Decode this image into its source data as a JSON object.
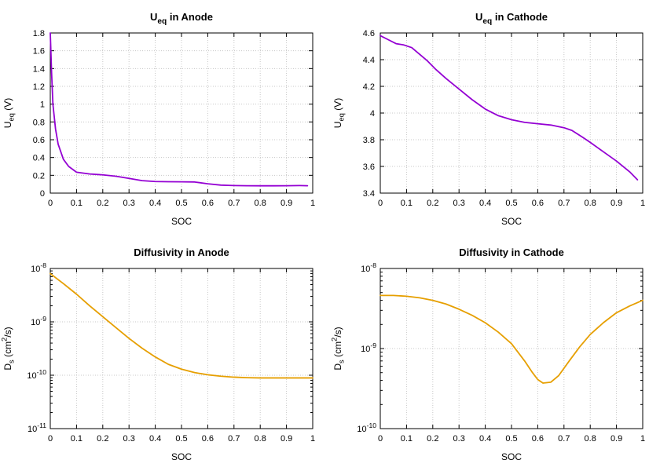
{
  "figure": {
    "background": "#ffffff",
    "grid_color": "#c8c8c8",
    "axis_color": "#000000",
    "text_color": "#000000"
  },
  "chart_data": [
    {
      "type": "line",
      "id": "ueq-anode",
      "title_plain": "U_eq in Anode",
      "title_segments": [
        {
          "t": "U"
        },
        {
          "t": "eq",
          "sub": true
        },
        {
          "t": " in Anode"
        }
      ],
      "xlabel": "SOC",
      "ylabel_plain": "U_eq (V)",
      "ylabel_segments": [
        {
          "t": "U"
        },
        {
          "t": "eq",
          "sub": true
        },
        {
          "t": " (V)"
        }
      ],
      "line_color": "#9400d3",
      "grid": true,
      "legend": "none",
      "y_scale": "linear",
      "x_range": [
        0,
        1
      ],
      "y_range": [
        0,
        1.8
      ],
      "x_ticks": {
        "values": [
          0,
          0.1,
          0.2,
          0.3,
          0.4,
          0.5,
          0.6,
          0.7,
          0.8,
          0.9,
          1
        ],
        "labels": [
          "0",
          "0.1",
          "0.2",
          "0.3",
          "0.4",
          "0.5",
          "0.6",
          "0.7",
          "0.8",
          "0.9",
          "1"
        ]
      },
      "y_ticks": {
        "values": [
          0,
          0.2,
          0.4,
          0.6,
          0.8,
          1,
          1.2,
          1.4,
          1.6,
          1.8
        ],
        "labels": [
          "0",
          "0.2",
          "0.4",
          "0.6",
          "0.8",
          "1",
          "1.2",
          "1.4",
          "1.6",
          "1.8"
        ]
      },
      "x": [
        0,
        0.005,
        0.01,
        0.02,
        0.03,
        0.05,
        0.07,
        0.1,
        0.15,
        0.2,
        0.25,
        0.3,
        0.35,
        0.4,
        0.45,
        0.5,
        0.55,
        0.6,
        0.65,
        0.7,
        0.75,
        0.8,
        0.85,
        0.9,
        0.95,
        0.98
      ],
      "y": [
        1.8,
        1.35,
        1.0,
        0.72,
        0.55,
        0.38,
        0.3,
        0.235,
        0.215,
        0.205,
        0.19,
        0.165,
        0.14,
        0.13,
        0.128,
        0.127,
        0.125,
        0.105,
        0.09,
        0.085,
        0.083,
        0.082,
        0.082,
        0.083,
        0.085,
        0.083
      ]
    },
    {
      "type": "line",
      "id": "ueq-cathode",
      "title_plain": "U_eq in Cathode",
      "title_segments": [
        {
          "t": "U"
        },
        {
          "t": "eq",
          "sub": true
        },
        {
          "t": " in Cathode"
        }
      ],
      "xlabel": "SOC",
      "ylabel_plain": "U_eq (V)",
      "ylabel_segments": [
        {
          "t": "U"
        },
        {
          "t": "eq",
          "sub": true
        },
        {
          "t": " (V)"
        }
      ],
      "line_color": "#9400d3",
      "grid": true,
      "legend": "none",
      "y_scale": "linear",
      "x_range": [
        0,
        1
      ],
      "y_range": [
        3.4,
        4.6
      ],
      "x_ticks": {
        "values": [
          0,
          0.1,
          0.2,
          0.3,
          0.4,
          0.5,
          0.6,
          0.7,
          0.8,
          0.9,
          1
        ],
        "labels": [
          "0",
          "0.1",
          "0.2",
          "0.3",
          "0.4",
          "0.5",
          "0.6",
          "0.7",
          "0.8",
          "0.9",
          "1"
        ]
      },
      "y_ticks": {
        "values": [
          3.4,
          3.6,
          3.8,
          4,
          4.2,
          4.4,
          4.6
        ],
        "labels": [
          "3.4",
          "3.6",
          "3.8",
          "4",
          "4.2",
          "4.4",
          "4.6"
        ]
      },
      "x": [
        0,
        0.03,
        0.06,
        0.09,
        0.12,
        0.15,
        0.18,
        0.21,
        0.25,
        0.3,
        0.35,
        0.4,
        0.45,
        0.5,
        0.55,
        0.6,
        0.65,
        0.7,
        0.73,
        0.77,
        0.8,
        0.85,
        0.9,
        0.95,
        0.98
      ],
      "y": [
        4.58,
        4.55,
        4.52,
        4.51,
        4.49,
        4.44,
        4.39,
        4.33,
        4.26,
        4.18,
        4.1,
        4.03,
        3.98,
        3.95,
        3.93,
        3.92,
        3.91,
        3.89,
        3.87,
        3.82,
        3.78,
        3.71,
        3.64,
        3.56,
        3.5
      ]
    },
    {
      "type": "line",
      "id": "diff-anode",
      "title_plain": "Diffusivity in Anode",
      "title_segments": [
        {
          "t": "Diffusivity in Anode"
        }
      ],
      "xlabel": "SOC",
      "ylabel_plain": "D_s (cm^2/s)",
      "ylabel_segments": [
        {
          "t": "D"
        },
        {
          "t": "s",
          "sub": true
        },
        {
          "t": " (cm"
        },
        {
          "t": "2",
          "sup": true
        },
        {
          "t": "/s)"
        }
      ],
      "line_color": "#e69f00",
      "grid": true,
      "legend": "none",
      "y_scale": "log",
      "x_range": [
        0,
        1
      ],
      "y_range": [
        1e-11,
        1e-08
      ],
      "x_ticks": {
        "values": [
          0,
          0.1,
          0.2,
          0.3,
          0.4,
          0.5,
          0.6,
          0.7,
          0.8,
          0.9,
          1
        ],
        "labels": [
          "0",
          "0.1",
          "0.2",
          "0.3",
          "0.4",
          "0.5",
          "0.6",
          "0.7",
          "0.8",
          "0.9",
          "1"
        ]
      },
      "y_ticks": {
        "exponents": [
          -11,
          -10,
          -9,
          -8
        ]
      },
      "x": [
        0,
        0.05,
        0.1,
        0.15,
        0.2,
        0.25,
        0.3,
        0.35,
        0.4,
        0.45,
        0.5,
        0.55,
        0.6,
        0.65,
        0.7,
        0.75,
        0.8,
        0.85,
        0.9,
        0.95,
        1.0
      ],
      "y": [
        8e-09,
        5.2e-09,
        3.3e-09,
        2e-09,
        1.25e-09,
        7.8e-10,
        4.9e-10,
        3.2e-10,
        2.2e-10,
        1.6e-10,
        1.3e-10,
        1.12e-10,
        1.02e-10,
        9.6e-11,
        9.2e-11,
        9e-11,
        8.9e-11,
        8.9e-11,
        8.9e-11,
        8.9e-11,
        8.9e-11
      ]
    },
    {
      "type": "line",
      "id": "diff-cathode",
      "title_plain": "Diffusivity in Cathode",
      "title_segments": [
        {
          "t": "Diffusivity in Cathode"
        }
      ],
      "xlabel": "SOC",
      "ylabel_plain": "D_s (cm^2/s)",
      "ylabel_segments": [
        {
          "t": "D"
        },
        {
          "t": "s",
          "sub": true
        },
        {
          "t": " (cm"
        },
        {
          "t": "2",
          "sup": true
        },
        {
          "t": "/s)"
        }
      ],
      "line_color": "#e69f00",
      "grid": true,
      "legend": "none",
      "y_scale": "log",
      "x_range": [
        0,
        1
      ],
      "y_range": [
        1e-10,
        1e-08
      ],
      "x_ticks": {
        "values": [
          0,
          0.1,
          0.2,
          0.3,
          0.4,
          0.5,
          0.6,
          0.7,
          0.8,
          0.9,
          1
        ],
        "labels": [
          "0",
          "0.1",
          "0.2",
          "0.3",
          "0.4",
          "0.5",
          "0.6",
          "0.7",
          "0.8",
          "0.9",
          "1"
        ]
      },
      "y_ticks": {
        "exponents": [
          -10,
          -9,
          -8
        ]
      },
      "x": [
        0,
        0.05,
        0.1,
        0.15,
        0.2,
        0.25,
        0.3,
        0.35,
        0.4,
        0.45,
        0.5,
        0.55,
        0.58,
        0.6,
        0.62,
        0.65,
        0.68,
        0.72,
        0.76,
        0.8,
        0.85,
        0.9,
        0.95,
        1.0
      ],
      "y": [
        4.6e-09,
        4.6e-09,
        4.5e-09,
        4.3e-09,
        4e-09,
        3.6e-09,
        3.1e-09,
        2.6e-09,
        2.1e-09,
        1.6e-09,
        1.15e-09,
        7e-10,
        5e-10,
        4.1e-10,
        3.7e-10,
        3.8e-10,
        4.6e-10,
        7e-10,
        1.05e-09,
        1.5e-09,
        2.1e-09,
        2.8e-09,
        3.4e-09,
        4e-09
      ]
    }
  ]
}
